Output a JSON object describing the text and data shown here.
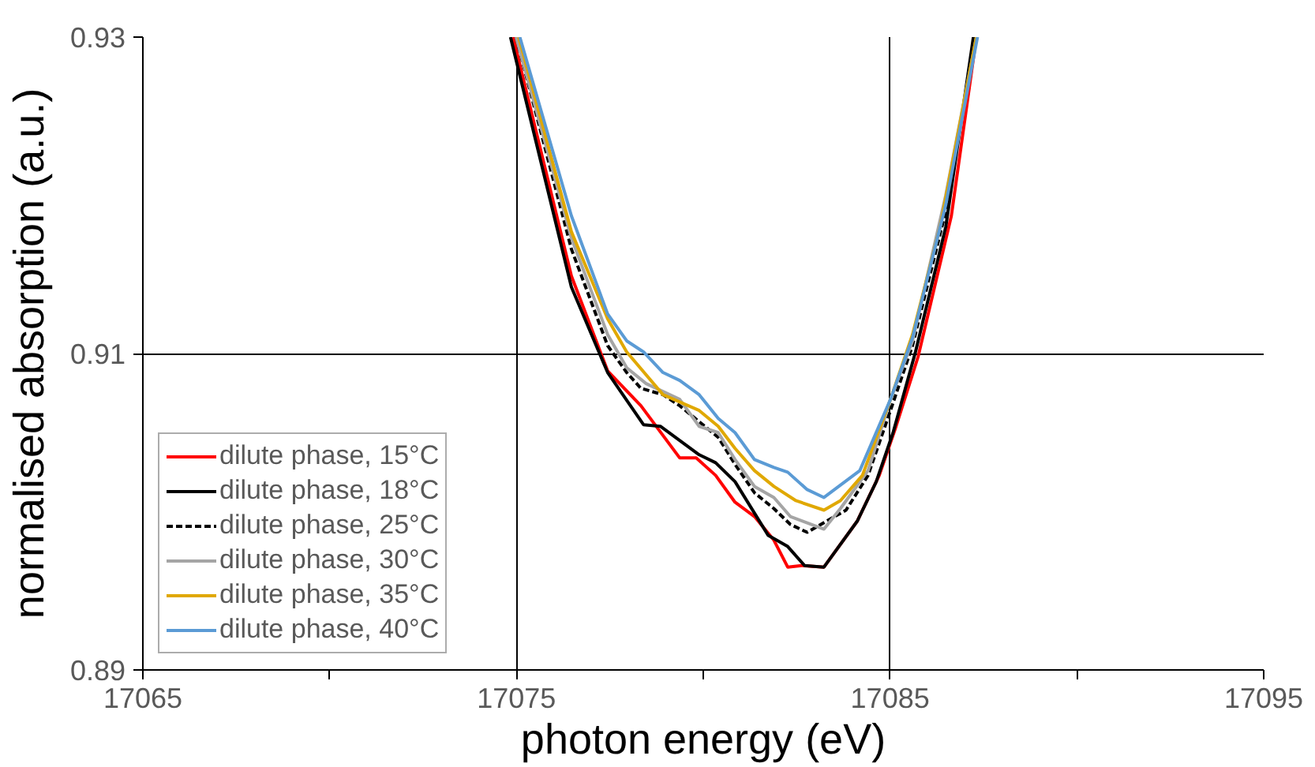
{
  "chart_data": {
    "type": "line",
    "xlabel": "photon energy (eV)",
    "ylabel": "normalised absorption (a.u.)",
    "xlim": [
      17065,
      17095
    ],
    "ylim": [
      0.89,
      0.93
    ],
    "xticks": [
      17065,
      {
        "value": 17070,
        "label": null
      },
      17075,
      {
        "value": 17080,
        "label": null
      },
      17085,
      {
        "value": 17090,
        "label": null
      },
      17095
    ],
    "yticks": [
      0.89,
      0.91,
      0.93
    ],
    "grid": true,
    "legend": "bottom left",
    "marker": "none",
    "series": [
      {
        "name": "dilute phase, 15°C",
        "color": "#ff0000",
        "line_style": "solid",
        "x": [
          17074.91,
          17076.47,
          17077.44,
          17078.33,
          17079.37,
          17079.81,
          17080.33,
          17080.85,
          17081.37,
          17081.89,
          17082.26,
          17082.63,
          17083.23,
          17084.12,
          17084.71,
          17085.16,
          17085.75,
          17086.64,
          17087.31
        ],
        "values": [
          0.93,
          0.9149,
          0.9089,
          0.9067,
          0.9034,
          0.9034,
          0.9023,
          0.9006,
          0.8997,
          0.8982,
          0.8965,
          0.8966,
          0.8965,
          0.8994,
          0.9023,
          0.9054,
          0.9098,
          0.9187,
          0.93
        ]
      },
      {
        "name": "dilute phase, 18°C",
        "color": "#000000",
        "line_style": "solid",
        "x": [
          17074.84,
          17076.47,
          17077.44,
          17078.4,
          17078.85,
          17079.89,
          17080.33,
          17080.85,
          17081.74,
          17082.26,
          17082.71,
          17083.23,
          17084.12,
          17084.63,
          17085.08,
          17085.68,
          17086.49,
          17087.23
        ],
        "values": [
          0.93,
          0.9142,
          0.9088,
          0.9055,
          0.9054,
          0.9036,
          0.9031,
          0.9019,
          0.8985,
          0.8978,
          0.8966,
          0.8965,
          0.8994,
          0.9019,
          0.905,
          0.9101,
          0.918,
          0.93
        ]
      },
      {
        "name": "dilute phase, 25°C",
        "color": "#000000",
        "line_style": "dashed",
        "x": [
          17074.99,
          17076.47,
          17077.44,
          17077.95,
          17078.33,
          17078.92,
          17079.37,
          17080.4,
          17080.85,
          17081.37,
          17081.89,
          17082.33,
          17082.78,
          17083.37,
          17083.82,
          17084.41,
          17085.01,
          17085.6,
          17086.49,
          17087.28
        ],
        "values": [
          0.93,
          0.9166,
          0.9105,
          0.9088,
          0.9078,
          0.9074,
          0.9067,
          0.9047,
          0.903,
          0.9012,
          0.9002,
          0.8992,
          0.8987,
          0.8995,
          0.9001,
          0.9023,
          0.9064,
          0.9105,
          0.919,
          0.93
        ]
      },
      {
        "name": "dilute phase, 30°C",
        "color": "#a5a5a5",
        "line_style": "solid",
        "x": [
          17074.99,
          17076.47,
          17077.44,
          17077.95,
          17078.47,
          17079.37,
          17079.89,
          17080.4,
          17080.85,
          17081.37,
          17081.89,
          17082.33,
          17083.23,
          17083.67,
          17084.41,
          17085.01,
          17085.6,
          17086.49,
          17087.31
        ],
        "values": [
          0.93,
          0.9173,
          0.9112,
          0.9091,
          0.9081,
          0.9071,
          0.9054,
          0.905,
          0.9033,
          0.9016,
          0.9009,
          0.8997,
          0.8989,
          0.9002,
          0.9026,
          0.9071,
          0.9108,
          0.92,
          0.93
        ]
      },
      {
        "name": "dilute phase, 35°C",
        "color": "#e0a800",
        "line_style": "solid",
        "x": [
          17075.06,
          17076.47,
          17077.44,
          17077.95,
          17078.92,
          17079.89,
          17080.4,
          17080.85,
          17081.37,
          17081.89,
          17082.48,
          17083.23,
          17083.67,
          17084.26,
          17085.01,
          17085.6,
          17086.34,
          17087.31
        ],
        "values": [
          0.93,
          0.9177,
          0.9122,
          0.9101,
          0.9074,
          0.9064,
          0.9054,
          0.904,
          0.9026,
          0.9016,
          0.9007,
          0.9001,
          0.9007,
          0.9023,
          0.9071,
          0.9112,
          0.918,
          0.93
        ]
      },
      {
        "name": "dilute phase, 40°C",
        "color": "#5b9bd5",
        "line_style": "solid",
        "x": [
          17075.09,
          17076.47,
          17077.44,
          17077.95,
          17078.4,
          17078.92,
          17079.37,
          17079.89,
          17080.4,
          17080.85,
          17081.37,
          17081.89,
          17082.26,
          17082.78,
          17083.23,
          17084.19,
          17085.01,
          17085.6,
          17086.49,
          17087.34
        ],
        "values": [
          0.93,
          0.9187,
          0.9125,
          0.9108,
          0.9101,
          0.9088,
          0.9083,
          0.9074,
          0.9059,
          0.905,
          0.9033,
          0.9028,
          0.9025,
          0.9014,
          0.9009,
          0.9026,
          0.9071,
          0.911,
          0.9194,
          0.93
        ]
      }
    ]
  }
}
